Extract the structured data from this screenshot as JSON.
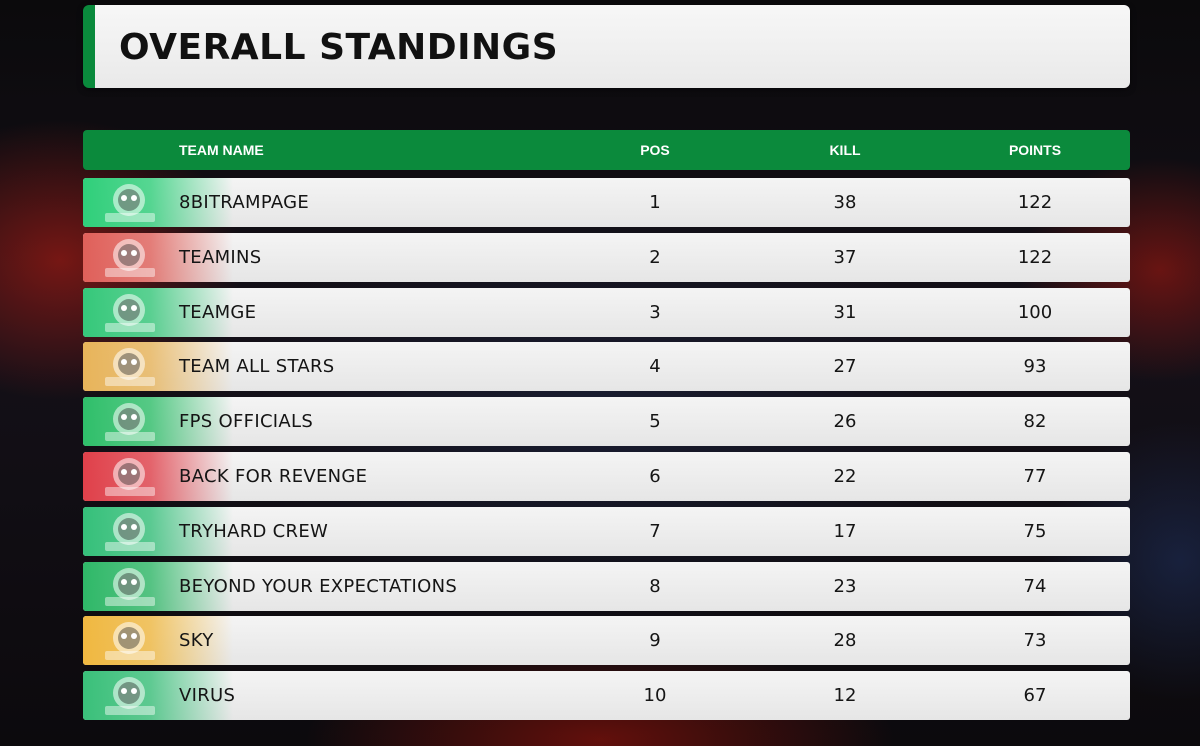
{
  "title": "OVERALL STANDINGS",
  "columns": {
    "team": "TEAM NAME",
    "pos": "POS",
    "kill": "KILL",
    "points": "POINTS"
  },
  "teams": [
    {
      "name": "8BITRAMPAGE",
      "pos": "1",
      "kill": "38",
      "points": "122",
      "accent": "#2fcf7a",
      "logo_icon": "skull-logo-icon"
    },
    {
      "name": "TEAMINS",
      "pos": "2",
      "kill": "37",
      "points": "122",
      "accent": "#e0605a",
      "logo_icon": "helmet-logo-icon"
    },
    {
      "name": "TEAMGE",
      "pos": "3",
      "kill": "31",
      "points": "100",
      "accent": "#35c87a",
      "logo_icon": "skull-logo-icon"
    },
    {
      "name": "TEAM ALL STARS",
      "pos": "4",
      "kill": "27",
      "points": "93",
      "accent": "#e8b45a",
      "logo_icon": "wolf-logo-icon"
    },
    {
      "name": "FPS OFFICIALS",
      "pos": "5",
      "kill": "26",
      "points": "82",
      "accent": "#2fbf6a",
      "logo_icon": "hooded-logo-icon"
    },
    {
      "name": "BACK FOR REVENGE",
      "pos": "6",
      "kill": "22",
      "points": "77",
      "accent": "#e0404a",
      "logo_icon": "ninja-logo-icon"
    },
    {
      "name": "TRYHARD CREW",
      "pos": "7",
      "kill": "17",
      "points": "75",
      "accent": "#35c07a",
      "logo_icon": "face-logo-icon"
    },
    {
      "name": "BEYOND YOUR EXPECTATIONS",
      "pos": "8",
      "kill": "23",
      "points": "74",
      "accent": "#2fb868",
      "logo_icon": "hooded-logo-icon"
    },
    {
      "name": "SKY",
      "pos": "9",
      "kill": "28",
      "points": "73",
      "accent": "#f0b840",
      "logo_icon": "soldier-logo-icon"
    },
    {
      "name": "VIRUS",
      "pos": "10",
      "kill": "12",
      "points": "67",
      "accent": "#3ac07a",
      "logo_icon": "spiky-logo-icon"
    }
  ]
}
